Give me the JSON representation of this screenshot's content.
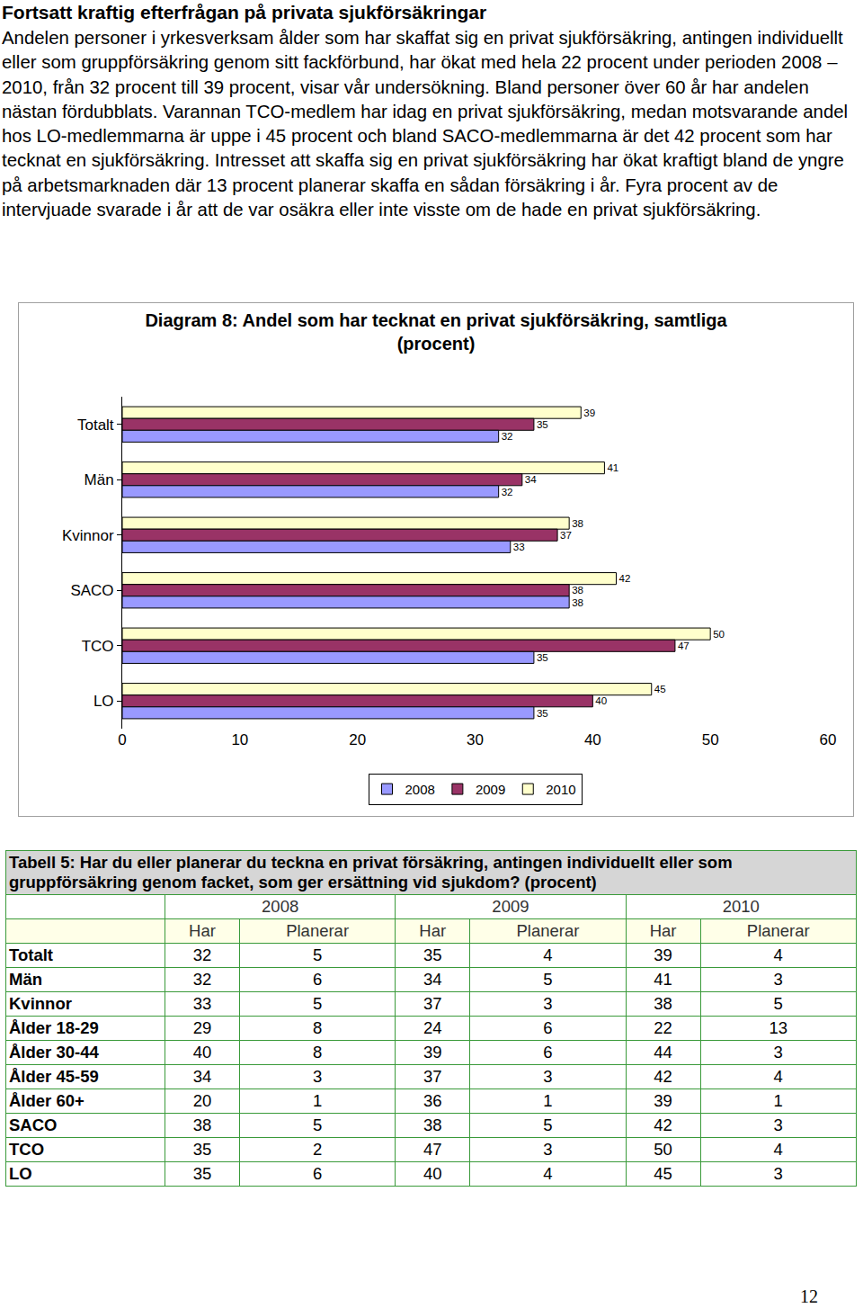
{
  "heading": "Fortsatt kraftig efterfrågan på privata sjukförsäkringar",
  "paragraph": "Andelen personer i yrkesverksam ålder som har skaffat sig en privat sjukförsäkring, antingen individuellt eller som gruppförsäkring genom sitt fackförbund, har ökat med hela 22 procent under perioden 2008 – 2010, från 32 procent till 39 procent, visar vår undersökning. Bland personer över 60 år har andelen nästan fördubblats. Varannan TCO-medlem har idag en privat sjukförsäkring, medan motsvarande andel hos LO-medlemmarna är uppe i 45 procent och bland SACO-medlemmarna är det 42 procent som har tecknat en sjukförsäkring. Intresset att skaffa sig en privat sjukförsäkring har ökat kraftigt bland de yngre på arbetsmarknaden där 13 procent planerar skaffa en sådan försäkring i år. Fyra procent av de intervjuade svarade i år att de var osäkra eller inte visste om de hade en privat sjukförsäkring.",
  "chart_data": {
    "type": "bar",
    "orientation": "horizontal",
    "title": [
      "Diagram 8: Andel som har tecknat en privat sjukförsäkring, samtliga",
      "(procent)"
    ],
    "categories": [
      "Totalt",
      "Män",
      "Kvinnor",
      "SACO",
      "TCO",
      "LO"
    ],
    "series": [
      {
        "name": "2008",
        "color": "#9999ff",
        "values": [
          32,
          32,
          33,
          38,
          35,
          35
        ]
      },
      {
        "name": "2009",
        "color": "#993366",
        "values": [
          35,
          34,
          37,
          38,
          47,
          40
        ]
      },
      {
        "name": "2010",
        "color": "#ffffcc",
        "values": [
          39,
          41,
          38,
          42,
          50,
          45
        ]
      }
    ],
    "xlim": [
      0,
      60
    ],
    "xticks": [
      0,
      10,
      20,
      30,
      40,
      50,
      60
    ],
    "grid": false,
    "legend": "bottom",
    "data_labels": true
  },
  "table": {
    "title": "Tabell 5: Har du eller planerar du teckna en privat försäkring, antingen individuellt eller som gruppförsäkring genom facket, som ger ersättning vid sjukdom? (procent)",
    "years": [
      "2008",
      "2009",
      "2010"
    ],
    "subheader": [
      "Har",
      "Planerar",
      "Har",
      "Planerar",
      "Har",
      "Planerar"
    ],
    "rows": [
      [
        "Totalt",
        32,
        5,
        35,
        4,
        39,
        4
      ],
      [
        "Män",
        32,
        6,
        34,
        5,
        41,
        3
      ],
      [
        "Kvinnor",
        33,
        5,
        37,
        3,
        38,
        5
      ],
      [
        "Ålder 18-29",
        29,
        8,
        24,
        6,
        22,
        13
      ],
      [
        "Ålder 30-44",
        40,
        8,
        39,
        6,
        44,
        3
      ],
      [
        "Ålder 45-59",
        34,
        3,
        37,
        3,
        42,
        4
      ],
      [
        "Ålder 60+",
        20,
        1,
        36,
        1,
        39,
        1
      ],
      [
        "SACO",
        38,
        5,
        38,
        5,
        42,
        3
      ],
      [
        "TCO",
        35,
        2,
        47,
        3,
        50,
        4
      ],
      [
        "LO",
        35,
        6,
        40,
        4,
        45,
        3
      ]
    ]
  },
  "page_number": "12"
}
